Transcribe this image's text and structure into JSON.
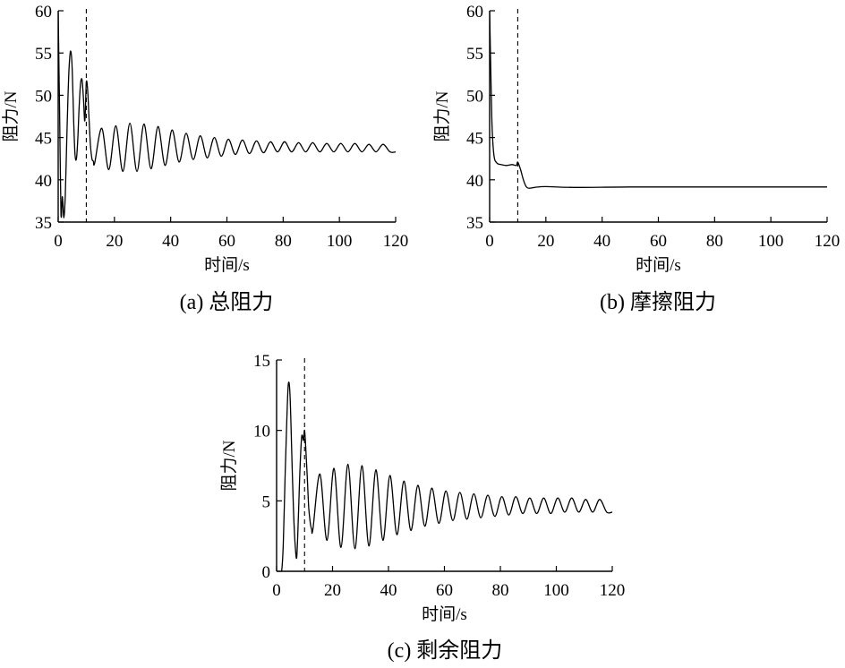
{
  "chart_data": [
    {
      "type": "line",
      "caption": "(a) 总阻力",
      "xlabel": "时间/s",
      "ylabel": "阻力/N",
      "xlim": [
        0,
        120
      ],
      "ylim": [
        35,
        60
      ],
      "xticks": [
        0,
        20,
        40,
        60,
        80,
        100,
        120
      ],
      "yticks": [
        35,
        40,
        45,
        50,
        55,
        60
      ],
      "grid": false,
      "marker_line_x": 10,
      "series": [
        {
          "x": [
            0,
            0.5,
            1.0,
            1.5,
            2.0,
            2.5,
            3.0,
            3.5,
            4.0,
            4.5,
            5.0,
            5.5,
            6.0,
            6.5,
            7.0,
            7.5,
            8.0,
            8.5,
            9.0,
            9.5,
            10.0,
            10.5,
            11.0,
            11.5,
            12.0,
            12.5,
            13.0,
            15.5,
            18.0,
            20.5,
            23.0,
            25.5,
            28.0,
            30.5,
            33.0,
            35.5,
            38.0,
            40.5,
            43.0,
            45.5,
            48.0,
            50.5,
            53.0,
            55.5,
            58.0,
            60.5,
            63.0,
            65.5,
            68.0,
            70.5,
            73.0,
            75.5,
            78.0,
            80.5,
            83.0,
            85.5,
            88.0,
            90.5,
            93.0,
            95.5,
            98.0,
            100.5,
            103.0,
            105.5,
            108.0,
            110.5,
            113.0,
            115.5,
            118.0,
            120.0
          ],
          "y": [
            60,
            48,
            36,
            38,
            35.5,
            38,
            44,
            50,
            54,
            55.2,
            53,
            47,
            43,
            42.5,
            45,
            49,
            51.5,
            51.8,
            49.5,
            47,
            51.5,
            50.5,
            47,
            44,
            42.5,
            42.2,
            42,
            46.1,
            41.2,
            46.4,
            41.0,
            46.7,
            41.0,
            46.6,
            41.3,
            46.3,
            41.7,
            45.9,
            42.1,
            45.5,
            42.4,
            45.2,
            42.6,
            45.0,
            42.8,
            44.8,
            43.0,
            44.7,
            43.1,
            44.6,
            43.2,
            44.5,
            43.3,
            44.5,
            43.3,
            44.4,
            43.3,
            44.4,
            43.3,
            44.3,
            43.3,
            44.3,
            43.3,
            44.3,
            43.3,
            44.2,
            43.3,
            44.2,
            43.3,
            43.3
          ]
        }
      ]
    },
    {
      "type": "line",
      "caption": "(b) 摩擦阻力",
      "xlabel": "时间/s",
      "ylabel": "阻力/N",
      "xlim": [
        0,
        120
      ],
      "ylim": [
        35,
        60
      ],
      "xticks": [
        0,
        20,
        40,
        60,
        80,
        100,
        120
      ],
      "yticks": [
        35,
        40,
        45,
        50,
        55,
        60
      ],
      "grid": false,
      "marker_line_x": 10,
      "series": [
        {
          "x": [
            0,
            0.3,
            0.8,
            1.5,
            2.5,
            4,
            6,
            8,
            9.5,
            10,
            11,
            12,
            13,
            14,
            16,
            20,
            30,
            50,
            80,
            120
          ],
          "y": [
            60,
            55,
            47,
            43,
            42,
            41.8,
            41.7,
            41.8,
            41.7,
            42.1,
            41.2,
            40.0,
            39.2,
            39.0,
            39.1,
            39.2,
            39.1,
            39.15,
            39.15,
            39.15
          ]
        }
      ]
    },
    {
      "type": "line",
      "caption": "(c) 剩余阻力",
      "xlabel": "时间/s",
      "ylabel": "阻力/N",
      "xlim": [
        0,
        120
      ],
      "ylim": [
        0,
        15
      ],
      "xticks": [
        0,
        20,
        40,
        60,
        80,
        100,
        120
      ],
      "yticks": [
        0,
        5,
        10,
        15
      ],
      "grid": false,
      "marker_line_x": 10,
      "series": [
        {
          "x": [
            1.2,
            1.8,
            2.4,
            3.0,
            3.6,
            4.2,
            4.8,
            5.4,
            6.0,
            6.6,
            7.2,
            7.8,
            8.4,
            9.0,
            9.6,
            10.0,
            10.5,
            11.0,
            11.5,
            12.0,
            12.5,
            13.0,
            15.5,
            18.0,
            20.5,
            23.0,
            25.5,
            28.0,
            30.5,
            33.0,
            35.5,
            38.0,
            40.5,
            43.0,
            45.5,
            48.0,
            50.5,
            53.0,
            55.5,
            58.0,
            60.5,
            63.0,
            65.5,
            68.0,
            70.5,
            73.0,
            75.5,
            78.0,
            80.5,
            83.0,
            85.5,
            88.0,
            90.5,
            93.0,
            95.5,
            98.0,
            100.5,
            103.0,
            105.5,
            108.0,
            110.5,
            113.0,
            115.5,
            118.0,
            120.0
          ],
          "y": [
            0,
            0,
            2,
            6.5,
            10.5,
            13.3,
            12.5,
            8.5,
            4.5,
            2,
            1.0,
            4,
            7.5,
            9.6,
            9.3,
            10,
            8.5,
            6.5,
            4.5,
            3.5,
            3.0,
            3.0,
            6.9,
            2.2,
            7.3,
            1.7,
            7.6,
            1.6,
            7.5,
            1.8,
            7.2,
            2.2,
            6.8,
            2.6,
            6.4,
            2.9,
            6.1,
            3.2,
            5.9,
            3.4,
            5.7,
            3.6,
            5.6,
            3.7,
            5.5,
            3.8,
            5.4,
            3.9,
            5.3,
            4.0,
            5.3,
            4.1,
            5.2,
            4.1,
            5.2,
            4.1,
            5.2,
            4.2,
            5.2,
            4.2,
            5.1,
            4.2,
            5.1,
            4.2,
            4.2
          ]
        }
      ]
    }
  ]
}
